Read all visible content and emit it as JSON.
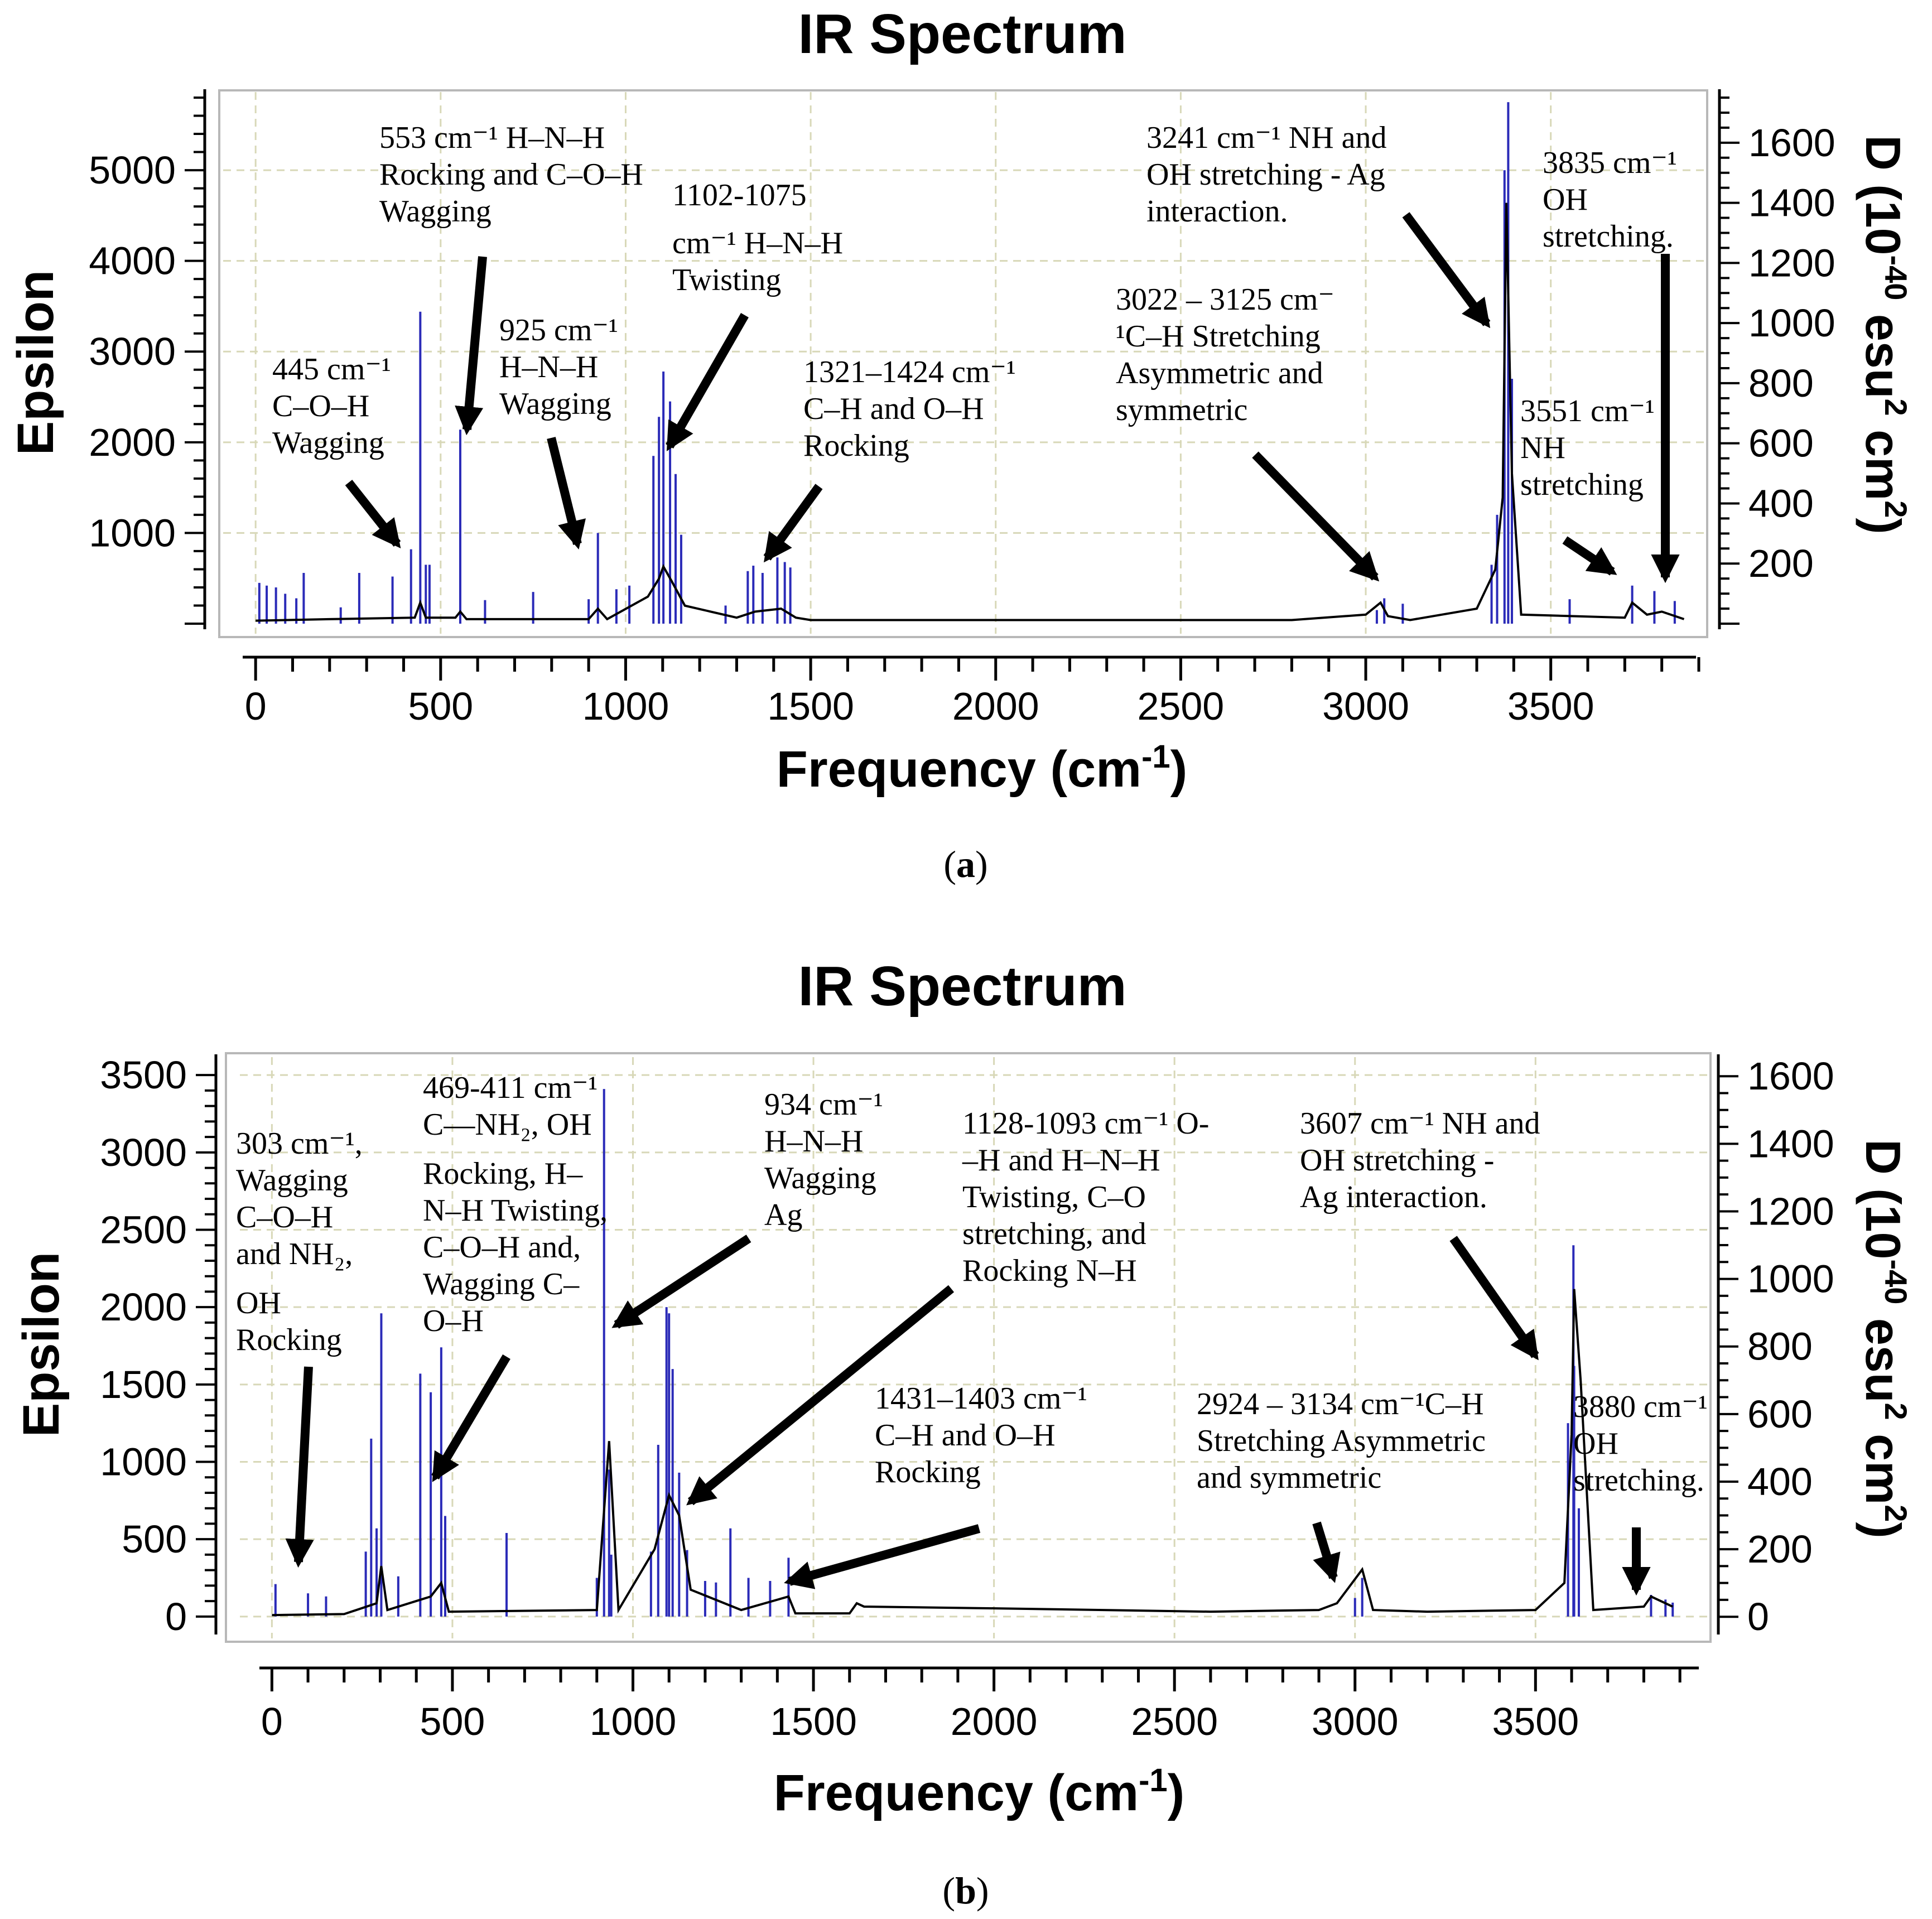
{
  "chart_data": [
    {
      "type": "bar",
      "panel": "a",
      "caption_letter": "a",
      "title": "IR Spectrum",
      "xlabel": "Frequency (cm",
      "xlabel_sup": "-1",
      "xlabel_close": ")",
      "ylabel": "Epsilon",
      "y2label": "D (10",
      "y2label_sup": "-40",
      "y2label_mid": " esu",
      "y2label_sup2": "2",
      "y2label_end": " cm",
      "y2label_sup3": "2",
      "y2label_close": ")",
      "xlim": [
        -50,
        3900
      ],
      "ylim": [
        0,
        5800
      ],
      "y2lim": [
        0,
        1750
      ],
      "x_ticks": [
        0,
        500,
        1000,
        1500,
        2000,
        2500,
        3000,
        3500
      ],
      "x_tick_labels": [
        "0",
        "500",
        "1000",
        "1500",
        "2000",
        "2500",
        "3000",
        "3500"
      ],
      "y_ticks": [
        1000,
        2000,
        3000,
        4000,
        5000
      ],
      "y_tick_labels": [
        "1000",
        "2000",
        "3000",
        "4000",
        "5000"
      ],
      "y2_ticks": [
        200,
        400,
        600,
        800,
        1000,
        1200,
        1400,
        1600
      ],
      "y2_tick_labels": [
        "200",
        "400",
        "600",
        "800",
        "1000",
        "1200",
        "1400",
        "1600"
      ],
      "epsilon_sticks": {
        "x": [
          10,
          30,
          55,
          80,
          110,
          130,
          230,
          280,
          370,
          420,
          445,
          460,
          470,
          553,
          620,
          750,
          900,
          925,
          975,
          1010,
          1075,
          1090,
          1102,
          1120,
          1135,
          1150,
          1270,
          1330,
          1345,
          1370,
          1410,
          1430,
          1445,
          3030,
          3050,
          3100,
          3340,
          3355,
          3375,
          3385,
          3395,
          3551,
          3720,
          3780,
          3835
        ],
        "y": [
          450,
          420,
          400,
          330,
          280,
          560,
          180,
          560,
          520,
          820,
          3440,
          650,
          650,
          2140,
          260,
          350,
          270,
          1000,
          380,
          420,
          1850,
          2280,
          2780,
          2450,
          1650,
          980,
          200,
          580,
          640,
          560,
          730,
          680,
          620,
          150,
          280,
          220,
          650,
          1200,
          5000,
          5750,
          2700,
          270,
          420,
          360,
          250
        ]
      },
      "d_envelope": {
        "x": [
          0,
          200,
          430,
          445,
          460,
          540,
          553,
          570,
          900,
          925,
          950,
          1060,
          1090,
          1102,
          1125,
          1160,
          1300,
          1350,
          1420,
          1460,
          1500,
          2800,
          3000,
          3040,
          3060,
          3120,
          3300,
          3350,
          3370,
          3380,
          3395,
          3420,
          3700,
          3720,
          3760,
          3800,
          3860
        ],
        "y": [
          10,
          15,
          20,
          70,
          20,
          20,
          40,
          15,
          15,
          50,
          15,
          90,
          150,
          190,
          140,
          60,
          20,
          40,
          50,
          20,
          12,
          12,
          30,
          70,
          25,
          12,
          50,
          180,
          420,
          1400,
          500,
          30,
          20,
          70,
          30,
          40,
          15
        ]
      },
      "annotations": [
        {
          "lines": [
            "445  cm⁻¹",
            "C–O–H",
            "Wagging"
          ]
        },
        {
          "lines": [
            "553  cm⁻¹   H–N–H",
            "Rocking and C–O–H",
            "Wagging"
          ]
        },
        {
          "lines": [
            "925 cm⁻¹",
            "H–N–H",
            "Wagging"
          ]
        },
        {
          "lines": [
            "1102-1075",
            "cm⁻¹ H–N–H",
            "Twisting"
          ]
        },
        {
          "lines": [
            "1321–1424 cm⁻¹",
            "C–H  and  O–H",
            "Rocking"
          ]
        },
        {
          "lines": [
            "3241  cm⁻¹  NH  and",
            "OH  stretching  -  Ag",
            "interaction."
          ]
        },
        {
          "lines": [
            "3022 – 3125 cm⁻",
            "¹C–H  Stretching",
            "Asymmetric   and",
            "symmetric"
          ]
        },
        {
          "lines": [
            "3835  cm⁻¹",
            "OH",
            "stretching."
          ]
        },
        {
          "lines": [
            "3551 cm⁻¹",
            "NH",
            "stretching"
          ]
        }
      ]
    },
    {
      "type": "bar",
      "panel": "b",
      "caption_letter": "b",
      "title": "IR Spectrum",
      "xlabel": "Frequency (cm",
      "xlabel_sup": "-1",
      "xlabel_close": ")",
      "ylabel": "Epsilon",
      "y2label": "D (10",
      "y2label_sup": "-40",
      "y2label_mid": " esu",
      "y2label_sup2": "2",
      "y2label_end": " cm",
      "y2label_sup3": "2",
      "y2label_close": ")",
      "xlim": [
        -50,
        3960
      ],
      "ylim": [
        -80,
        3580
      ],
      "y2lim": [
        -36,
        1640
      ],
      "x_ticks": [
        0,
        500,
        1000,
        1500,
        2000,
        2500,
        3000,
        3500
      ],
      "x_tick_labels": [
        "0",
        "500",
        "1000",
        "1500",
        "2000",
        "2500",
        "3000",
        "3500"
      ],
      "y_ticks": [
        0,
        500,
        1000,
        1500,
        2000,
        2500,
        3000,
        3500
      ],
      "y_tick_labels": [
        "0",
        "500",
        "1000",
        "1500",
        "2000",
        "2500",
        "3000",
        "3500"
      ],
      "y2_ticks": [
        0,
        200,
        400,
        600,
        800,
        1000,
        1200,
        1400,
        1600
      ],
      "y2_tick_labels": [
        "0",
        "200",
        "400",
        "600",
        "800",
        "1000",
        "1200",
        "1400",
        "1600"
      ],
      "epsilon_sticks": {
        "x": [
          10,
          100,
          150,
          260,
          275,
          290,
          303,
          350,
          411,
          440,
          469,
          480,
          650,
          900,
          920,
          934,
          940,
          1050,
          1070,
          1093,
          1100,
          1110,
          1128,
          1150,
          1200,
          1230,
          1270,
          1320,
          1380,
          1431,
          3000,
          3020,
          3590,
          3605,
          3607,
          3620,
          3820,
          3860,
          3880
        ],
        "y": [
          210,
          150,
          130,
          420,
          1150,
          570,
          1960,
          260,
          1570,
          1450,
          1740,
          650,
          540,
          250,
          3410,
          950,
          400,
          420,
          1110,
          2000,
          1960,
          1600,
          930,
          430,
          230,
          220,
          570,
          250,
          230,
          380,
          120,
          250,
          1250,
          2400,
          1620,
          700,
          140,
          110,
          90
        ]
      },
      "d_envelope": {
        "x": [
          0,
          200,
          290,
          303,
          320,
          440,
          469,
          490,
          900,
          934,
          960,
          1060,
          1100,
          1128,
          1160,
          1300,
          1431,
          1450,
          1600,
          1620,
          1640,
          2000,
          2600,
          2900,
          2950,
          3020,
          3050,
          3200,
          3500,
          3580,
          3600,
          3607,
          3625,
          3660,
          3800,
          3820,
          3880
        ],
        "y": [
          5,
          8,
          40,
          150,
          20,
          60,
          100,
          15,
          20,
          520,
          20,
          200,
          360,
          300,
          80,
          20,
          60,
          10,
          10,
          40,
          30,
          25,
          15,
          20,
          40,
          140,
          20,
          15,
          20,
          100,
          540,
          970,
          700,
          20,
          30,
          60,
          30
        ]
      },
      "annotations": [
        {
          "lines": [
            "303  cm⁻¹,",
            "Wagging",
            "C–O–H",
            "and  NH₂,",
            "OH",
            "Rocking"
          ]
        },
        {
          "lines": [
            "469-411   cm⁻¹",
            "C—NH₂,   OH",
            "Rocking,    H–",
            "N–H Twisting,",
            "C–O–H    and,",
            "Wagging    C–",
            "O–H"
          ]
        },
        {
          "lines": [
            "934  cm⁻¹",
            "H–N–H",
            "Wagging",
            "Ag"
          ]
        },
        {
          "lines": [
            "1128-1093 cm⁻¹ O-",
            "–H   and   H–N–H",
            "Twisting,        C–O",
            "stretching,        and",
            "Rocking N–H"
          ]
        },
        {
          "lines": [
            "1431–1403 cm⁻¹",
            "C–H  and  O–H",
            "Rocking"
          ]
        },
        {
          "lines": [
            "2924 – 3134 cm⁻¹C–H",
            "Stretching Asymmetric",
            "and symmetric"
          ]
        },
        {
          "lines": [
            "3607 cm⁻¹ NH and",
            "OH   stretching   -",
            "Ag interaction."
          ]
        },
        {
          "lines": [
            "3880  cm⁻¹",
            "OH",
            "stretching."
          ]
        }
      ]
    }
  ],
  "colors": {
    "stick": "#2b2bb8",
    "stick_dark": "#00007a",
    "envelope": "#000000",
    "grid": "#d8d8b8",
    "frame": "#b8b8b8",
    "arrow": "#000000"
  }
}
